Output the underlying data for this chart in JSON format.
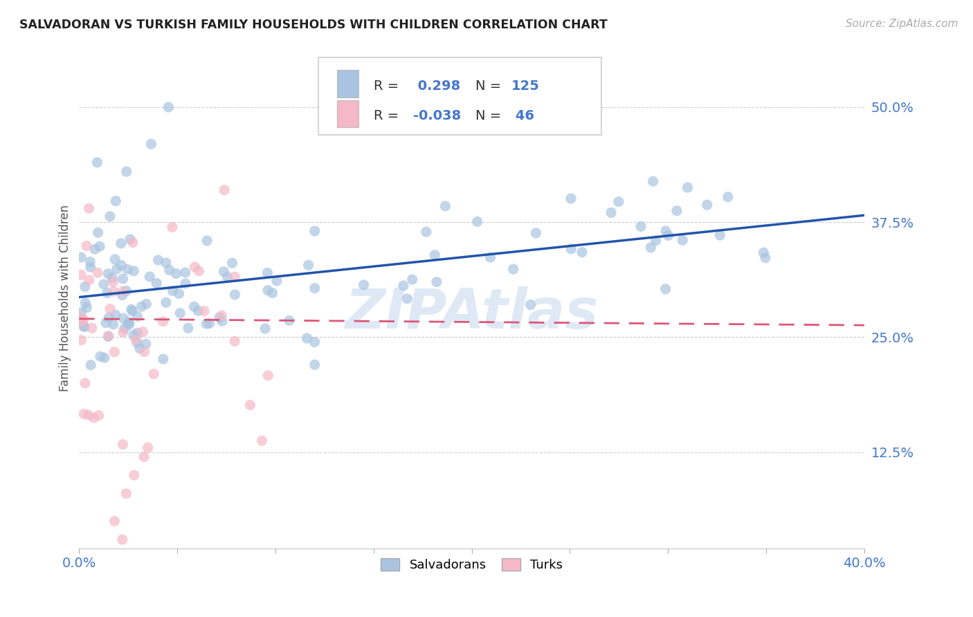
{
  "title": "SALVADORAN VS TURKISH FAMILY HOUSEHOLDS WITH CHILDREN CORRELATION CHART",
  "source": "Source: ZipAtlas.com",
  "ylabel": "Family Households with Children",
  "xlim": [
    0.0,
    0.4
  ],
  "ylim": [
    0.02,
    0.565
  ],
  "yticks": [
    0.125,
    0.25,
    0.375,
    0.5
  ],
  "ytick_labels": [
    "12.5%",
    "25.0%",
    "37.5%",
    "50.0%"
  ],
  "xticks": [
    0.0,
    0.05,
    0.1,
    0.15,
    0.2,
    0.25,
    0.3,
    0.35,
    0.4
  ],
  "salvadoran_color": "#a8c4e0",
  "salvadoran_edge": "#6699cc",
  "turkish_color": "#f4b8c8",
  "turkish_edge": "#e07090",
  "trendline_blue": "#2255aa",
  "trendline_pink": "#dd5577",
  "R_salv": 0.298,
  "N_salv": 125,
  "R_turk": -0.038,
  "N_turk": 46,
  "watermark": "ZIPAtlas",
  "legend_label_salv": "Salvadorans",
  "legend_label_turk": "Turks"
}
